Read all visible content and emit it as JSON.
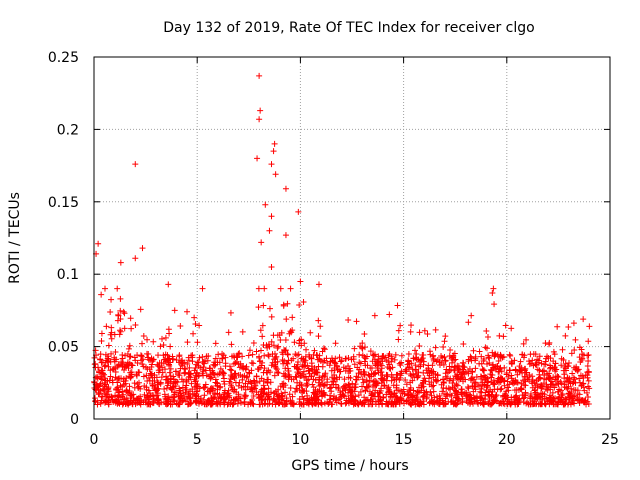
{
  "chart_data": {
    "type": "scatter",
    "title": "Day 132 of 2019, Rate Of TEC Index for receiver clgo",
    "xlabel": "GPS time / hours",
    "ylabel": "ROTI / TECUs",
    "xlim": [
      0,
      25
    ],
    "ylim": [
      0,
      0.25
    ],
    "x_ticks": [
      0,
      5,
      10,
      15,
      20,
      25
    ],
    "x_tick_labels": [
      "0",
      "5",
      "10",
      "15",
      "20",
      "25"
    ],
    "y_ticks": [
      0,
      0.05,
      0.1,
      0.15,
      0.2,
      0.25
    ],
    "y_tick_labels": [
      "0",
      "0.05",
      "0.1",
      "0.15",
      "0.2",
      "0.25"
    ],
    "grid": true,
    "marker": "+",
    "series": [
      {
        "name": "ROTI",
        "color": "#ff0000",
        "x_range": [
          0,
          24
        ],
        "typical_range": [
          0.01,
          0.045
        ],
        "notable_points": [
          {
            "x": 2.0,
            "y": 0.176
          },
          {
            "x": 8.0,
            "y": 0.237
          },
          {
            "x": 8.05,
            "y": 0.213
          },
          {
            "x": 8.0,
            "y": 0.207
          },
          {
            "x": 7.9,
            "y": 0.18
          },
          {
            "x": 8.75,
            "y": 0.19
          },
          {
            "x": 8.7,
            "y": 0.185
          },
          {
            "x": 8.6,
            "y": 0.176
          },
          {
            "x": 8.8,
            "y": 0.169
          },
          {
            "x": 9.3,
            "y": 0.159
          },
          {
            "x": 8.3,
            "y": 0.148
          },
          {
            "x": 9.9,
            "y": 0.143
          },
          {
            "x": 8.6,
            "y": 0.14
          },
          {
            "x": 8.5,
            "y": 0.13
          },
          {
            "x": 9.3,
            "y": 0.127
          },
          {
            "x": 8.1,
            "y": 0.122
          },
          {
            "x": 0.2,
            "y": 0.121
          },
          {
            "x": 2.35,
            "y": 0.118
          },
          {
            "x": 0.1,
            "y": 0.114
          },
          {
            "x": 1.3,
            "y": 0.108
          },
          {
            "x": 2.0,
            "y": 0.111
          },
          {
            "x": 8.6,
            "y": 0.105
          },
          {
            "x": 10.0,
            "y": 0.095
          },
          {
            "x": 3.6,
            "y": 0.093
          },
          {
            "x": 19.35,
            "y": 0.09
          },
          {
            "x": 19.3,
            "y": 0.087
          },
          {
            "x": 10.9,
            "y": 0.093
          },
          {
            "x": 23.7,
            "y": 0.069
          },
          {
            "x": 24.0,
            "y": 0.064
          }
        ]
      }
    ]
  }
}
